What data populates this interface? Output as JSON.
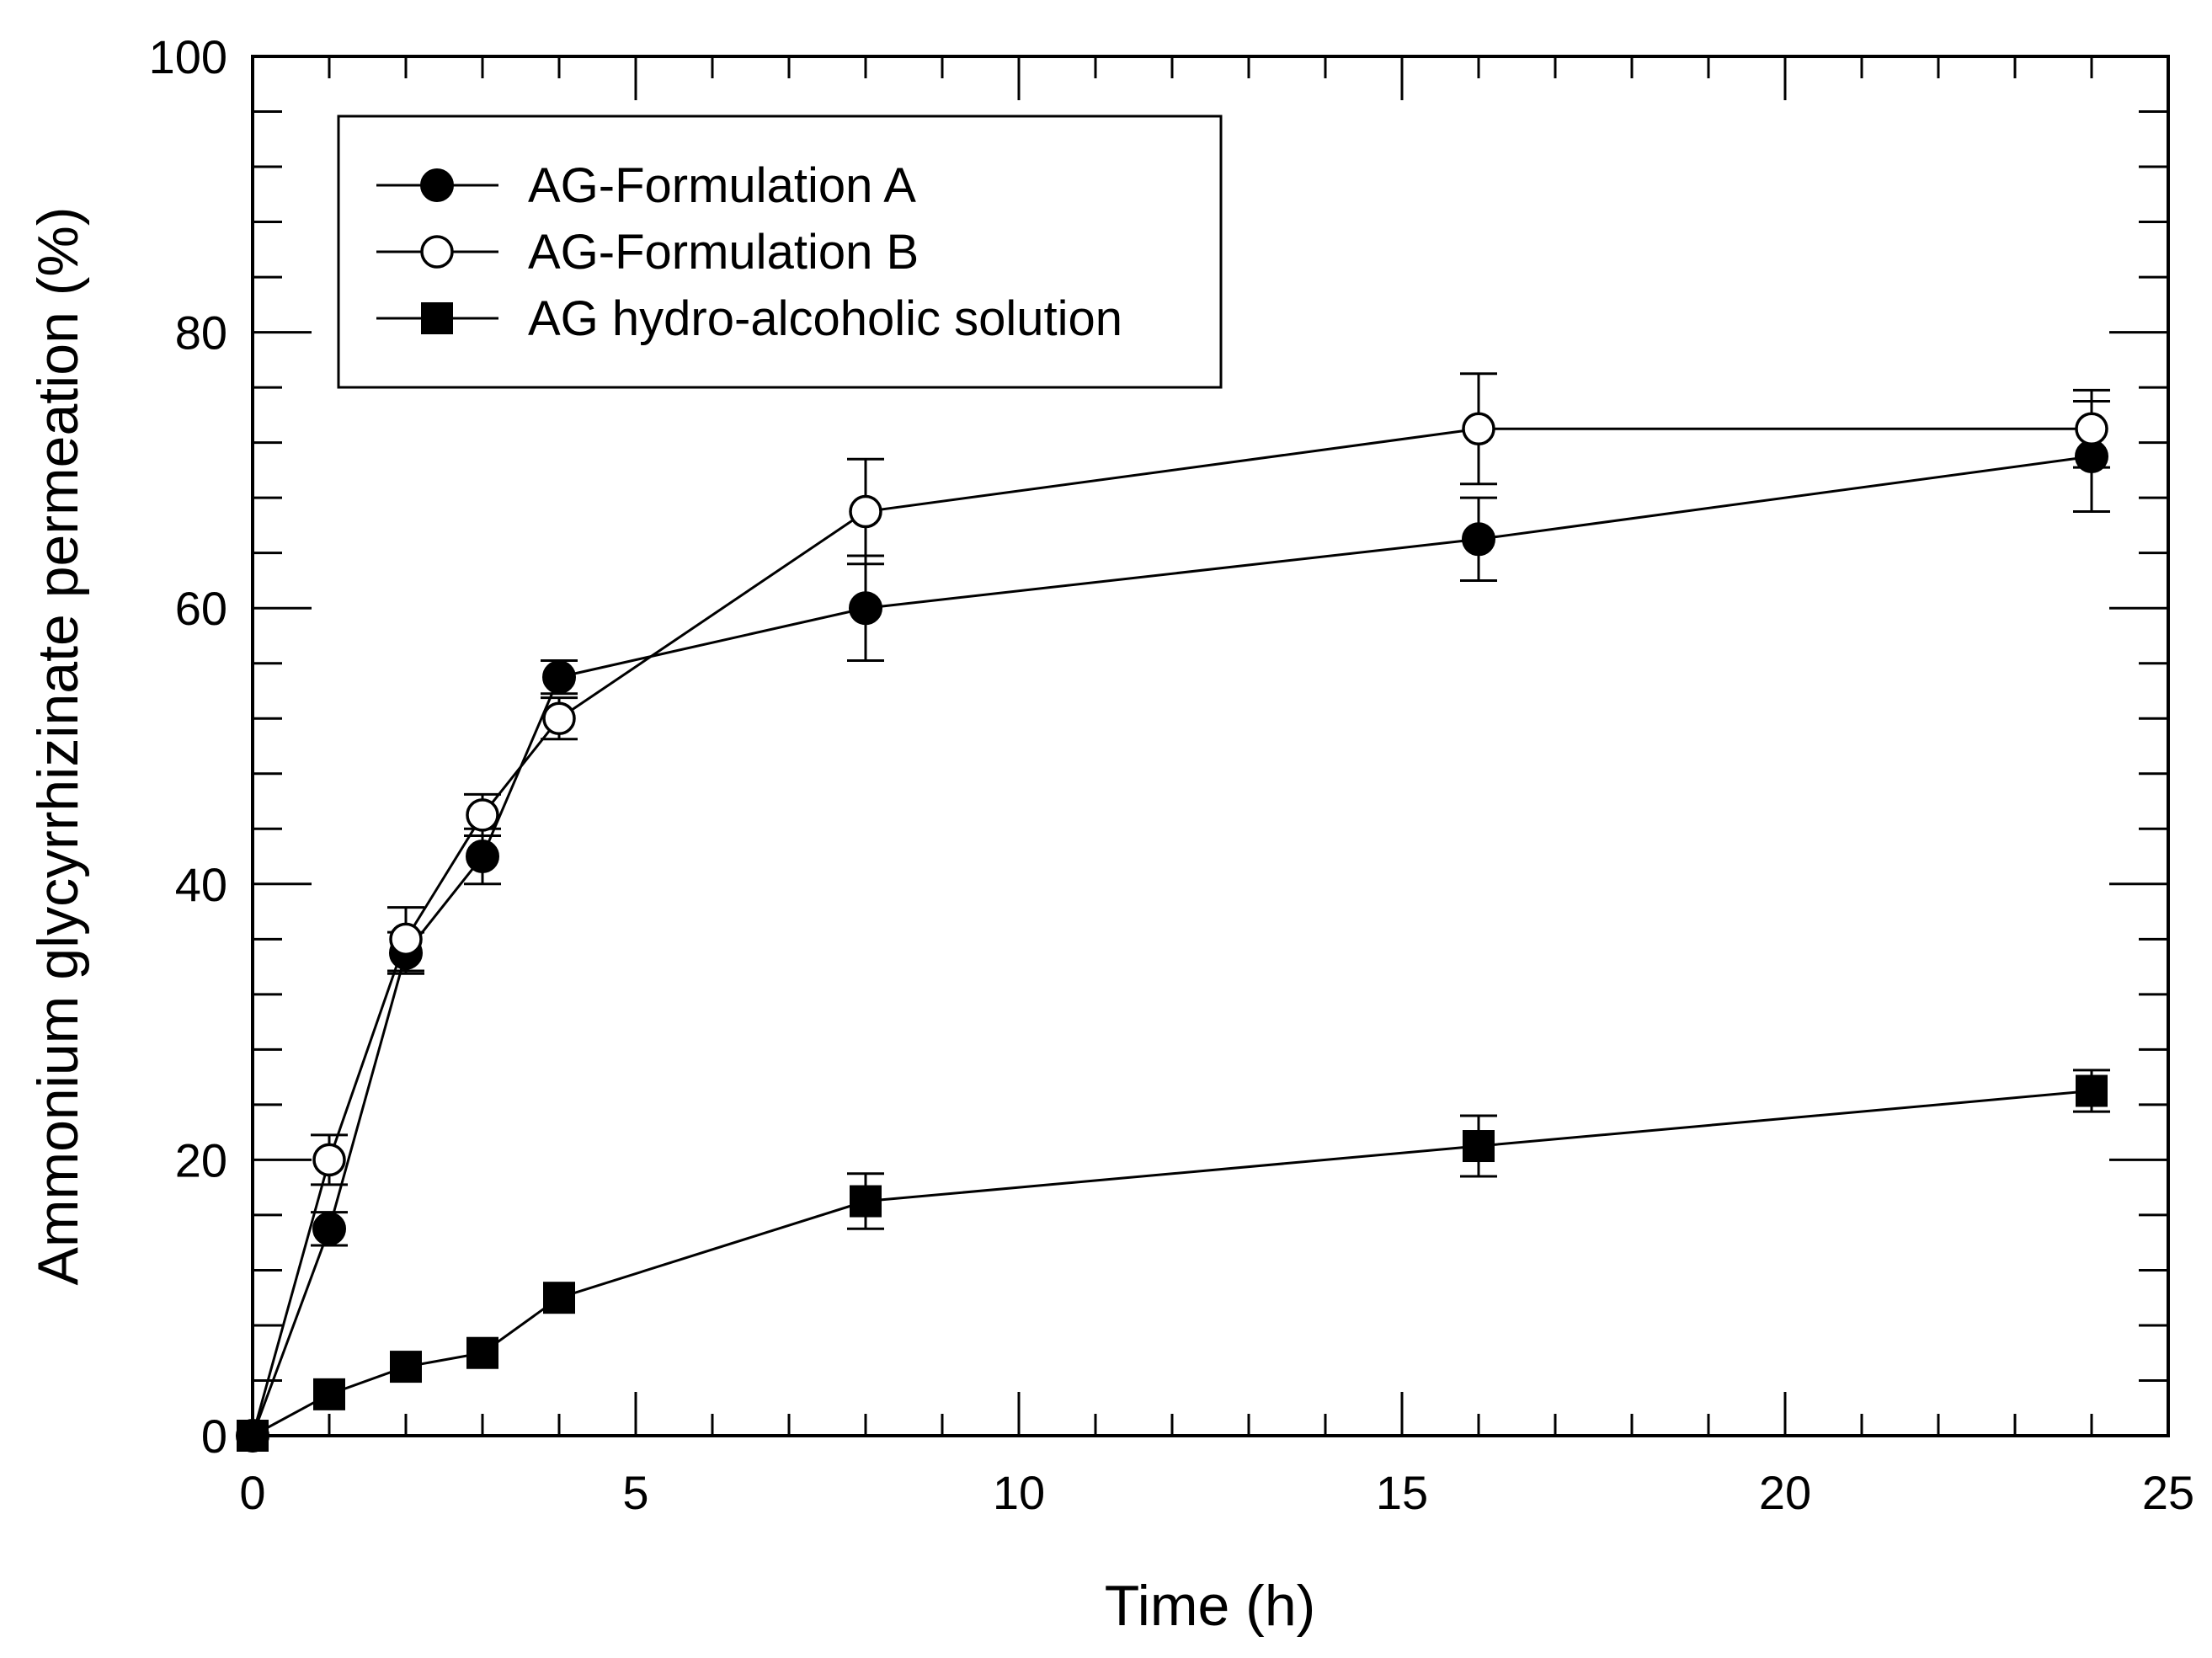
{
  "chart_data": {
    "type": "line",
    "title": "",
    "xlabel": "Time (h)",
    "ylabel": "Ammonium glycyrrhizinate permeation (%)",
    "xlim": [
      0,
      25
    ],
    "ylim": [
      0,
      100
    ],
    "x_ticks": [
      0,
      5,
      10,
      15,
      20,
      25
    ],
    "y_ticks": [
      0,
      20,
      40,
      60,
      80,
      100
    ],
    "x_tick_labels": [
      "0",
      "5",
      "10",
      "15",
      "20",
      "25"
    ],
    "y_tick_labels": [
      "0",
      "20",
      "40",
      "60",
      "80",
      "100"
    ],
    "x_minor_step": 1,
    "y_minor_step": 4,
    "grid": false,
    "legend_position": "top-left",
    "series": [
      {
        "name": "AG-Formulation A",
        "marker": "filled-circle",
        "color": "#000000",
        "x": [
          0,
          1,
          2,
          3,
          4,
          8,
          16,
          24
        ],
        "y": [
          0,
          15,
          35,
          42,
          55,
          60,
          65,
          71
        ],
        "err": [
          0,
          1.2,
          1.5,
          2.0,
          1.2,
          3.8,
          3.0,
          4.0
        ]
      },
      {
        "name": "AG-Formulation B",
        "marker": "open-circle",
        "color": "#000000",
        "x": [
          0,
          1,
          2,
          3,
          4,
          8,
          16,
          24
        ],
        "y": [
          0,
          20,
          36,
          45,
          52,
          67,
          73,
          73
        ],
        "err": [
          0,
          1.8,
          2.3,
          1.5,
          1.5,
          3.8,
          4.0,
          2.8
        ]
      },
      {
        "name": "AG hydro-alcoholic solution",
        "marker": "filled-square",
        "color": "#000000",
        "x": [
          0,
          1,
          2,
          3,
          4,
          8,
          16,
          24
        ],
        "y": [
          0,
          3,
          5,
          6,
          10,
          17,
          21,
          25
        ],
        "err": [
          0,
          0,
          0,
          0,
          0,
          2.0,
          2.2,
          1.5
        ]
      }
    ]
  }
}
